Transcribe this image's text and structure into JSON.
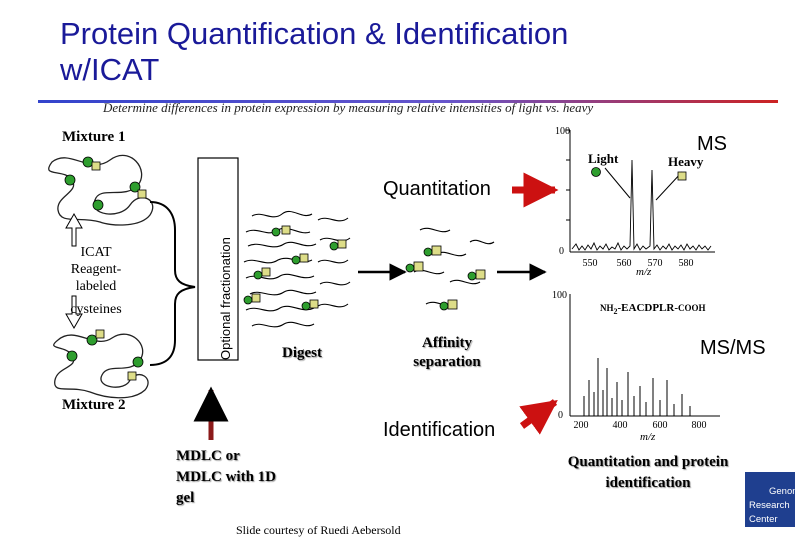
{
  "slide": {
    "title_line1": "Protein Quantification & Identification",
    "title_line2": "w/ICAT",
    "subtitle": "Determine differences in protein expression by measuring relative intensities of light vs. heavy",
    "credit": "Slide courtesy of Ruedi Aebersold"
  },
  "left_panel": {
    "mixture1": "Mixture 1",
    "mixture2": "Mixture 2",
    "icat_lines": [
      "ICAT",
      "Reagent-",
      "labeled",
      "cysteines"
    ],
    "fractionation": "Optional fractionation"
  },
  "middle_panel": {
    "quantitation": "Quantitation",
    "identification": "Identification",
    "digest": "Digest",
    "affinity_lines": [
      "Affinity",
      "separation"
    ],
    "mdlc_lines": [
      "MDLC or",
      "MDLC with 1D",
      "gel"
    ]
  },
  "ms_panel": {
    "label": "MS",
    "light": "Light",
    "heavy": "Heavy",
    "y_top": "100",
    "y_zero": "0",
    "x_ticks": [
      "550",
      "560",
      "570",
      "580"
    ],
    "xlabel": "m/z"
  },
  "msms_panel": {
    "label": "MS/MS",
    "peptide_prefix": "NH",
    "peptide_sub": "2",
    "peptide_seq": "-EACDPLR-",
    "peptide_suffix": "COOH",
    "y_top": "100",
    "y_zero": "0",
    "x_ticks": [
      "200",
      "400",
      "600",
      "800"
    ],
    "xlabel": "m/z",
    "caption_lines": [
      "Quantitation and protein",
      "identification"
    ]
  },
  "logo": {
    "lines": [
      "Genome",
      "Research",
      "Center"
    ],
    "color": "#1f3f8f"
  },
  "colors": {
    "title": "#1a1a99",
    "arrow_red": "#cc1111",
    "protein_dot": "#2e9e2e",
    "tag_fill": "#dddd88"
  }
}
